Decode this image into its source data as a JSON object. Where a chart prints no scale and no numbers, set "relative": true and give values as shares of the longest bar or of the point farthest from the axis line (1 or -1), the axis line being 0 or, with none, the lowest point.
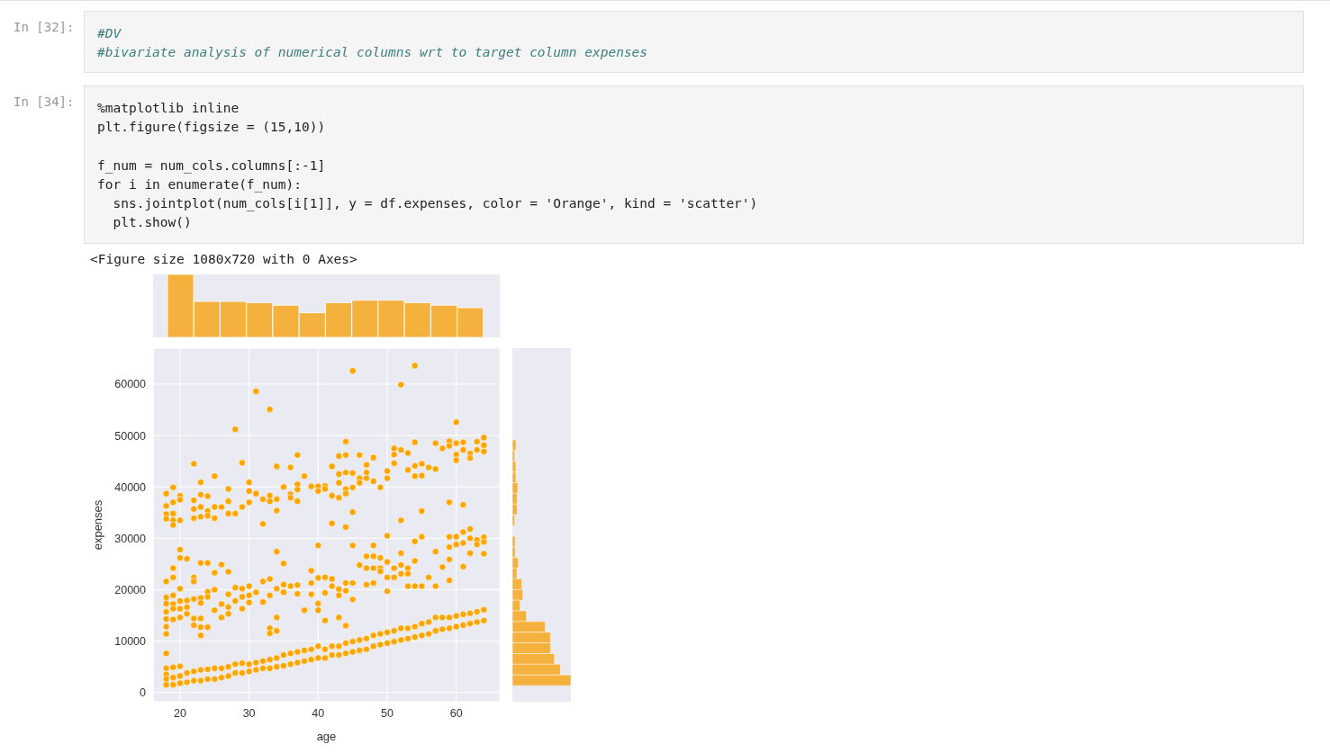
{
  "chart_data": [
    {
      "type": "bar",
      "relative": true,
      "color": "#f5b13d",
      "categories": [
        null,
        null,
        null,
        null,
        null,
        null,
        null,
        null,
        null,
        null,
        null,
        null
      ],
      "values": [
        1,
        0.57,
        0.57,
        0.55,
        0.51,
        0.39,
        0.55,
        0.59,
        0.59,
        0.55,
        0.51,
        0.47
      ],
      "annotations": [
        "In [32]:",
        "#DV",
        "#bivariate analysis of numerical columns wrt to target column expenses",
        "In [34]:",
        "%matplotlib inline",
        "plt.figure(figsize = (15,10))",
        "f_num = num_cols.columns[:-1]",
        "for i in enumerate(f_num):",
        "  sns.jointplot(num_cols[i[1]], y = df.expenses, color = 'Orange', kind = 'scatter')",
        "  plt.show()",
        "<Figure size 1080x720 with 0 Axes>"
      ]
    },
    {
      "type": "scatter",
      "color": "#ffa500",
      "marker": "circle",
      "xlabel": "age",
      "ylabel": "expenses",
      "xlim": [
        16.1,
        66.3
      ],
      "ylim": [
        -1800,
        67000
      ],
      "xticks": [
        20,
        30,
        40,
        50,
        60
      ],
      "yticks": [
        0,
        10000,
        20000,
        30000,
        40000,
        50000,
        60000
      ],
      "grid": true,
      "x": [
        18,
        18,
        18,
        18,
        18,
        18,
        18,
        18,
        18,
        18,
        18,
        18,
        18,
        18,
        18,
        18,
        19,
        19,
        19,
        19,
        19,
        19,
        19,
        19,
        19,
        19,
        19,
        19,
        19,
        19,
        20,
        20,
        20,
        20,
        20,
        20,
        20,
        20,
        20,
        20,
        20,
        20,
        21,
        21,
        21,
        21,
        21,
        21,
        22,
        22,
        22,
        22,
        22,
        22,
        22,
        22,
        22,
        22,
        22,
        23,
        23,
        23,
        23,
        23,
        23,
        23,
        23,
        23,
        23,
        23,
        23,
        24,
        24,
        24,
        24,
        24,
        24,
        24,
        24,
        24,
        25,
        25,
        25,
        25,
        25,
        25,
        25,
        25,
        26,
        26,
        26,
        26,
        26,
        26,
        27,
        27,
        27,
        27,
        27,
        27,
        27,
        27,
        27,
        28,
        28,
        28,
        28,
        28,
        28,
        29,
        29,
        29,
        29,
        29,
        29,
        29,
        30,
        30,
        30,
        30,
        30,
        30,
        30,
        30,
        31,
        31,
        31,
        31,
        31,
        32,
        32,
        32,
        32,
        32,
        32,
        33,
        33,
        33,
        33,
        33,
        33,
        33,
        33,
        33,
        34,
        34,
        34,
        34,
        34,
        34,
        34,
        34,
        34,
        35,
        35,
        35,
        35,
        35,
        35,
        36,
        36,
        36,
        36,
        36,
        36,
        37,
        37,
        37,
        37,
        37,
        37,
        37,
        37,
        38,
        38,
        38,
        38,
        39,
        39,
        39,
        39,
        39,
        39,
        40,
        40,
        40,
        40,
        40,
        40,
        40,
        40,
        41,
        41,
        41,
        41,
        41,
        41,
        41,
        42,
        42,
        42,
        42,
        42,
        42,
        42,
        43,
        43,
        43,
        43,
        43,
        43,
        43,
        43,
        43,
        44,
        44,
        44,
        44,
        44,
        44,
        44,
        44,
        44,
        44,
        44,
        45,
        45,
        45,
        45,
        45,
        45,
        45,
        45,
        45,
        46,
        46,
        46,
        46,
        46,
        46,
        47,
        47,
        47,
        47,
        47,
        47,
        47,
        47,
        48,
        48,
        48,
        48,
        48,
        48,
        48,
        48,
        49,
        49,
        49,
        49,
        49,
        49,
        50,
        50,
        50,
        50,
        50,
        50,
        50,
        50,
        51,
        51,
        51,
        51,
        51,
        51,
        51,
        52,
        52,
        52,
        52,
        52,
        52,
        52,
        52,
        53,
        53,
        53,
        53,
        53,
        53,
        53,
        54,
        54,
        54,
        54,
        54,
        54,
        54,
        54,
        54,
        55,
        55,
        55,
        55,
        55,
        55,
        55,
        56,
        56,
        56,
        56,
        57,
        57,
        57,
        57,
        57,
        57,
        58,
        58,
        58,
        58,
        59,
        59,
        59,
        59,
        59,
        59,
        59,
        59,
        59,
        60,
        60,
        60,
        60,
        60,
        60,
        60,
        60,
        61,
        61,
        61,
        61,
        61,
        61,
        61,
        61,
        62,
        62,
        62,
        62,
        62,
        62,
        62,
        63,
        63,
        63,
        63,
        63,
        63,
        64,
        64,
        64,
        64,
        64,
        64,
        64,
        64
      ],
      "values": [
        38700,
        36300,
        34700,
        33800,
        21600,
        18500,
        17300,
        15700,
        14300,
        12800,
        11400,
        7600,
        4700,
        3500,
        2600,
        1500,
        39900,
        37000,
        34800,
        33500,
        32600,
        24200,
        22400,
        18900,
        17200,
        16300,
        14200,
        4900,
        2900,
        1500,
        38300,
        37500,
        33500,
        27800,
        26200,
        20200,
        17800,
        16300,
        14600,
        5100,
        3200,
        1800,
        26000,
        17900,
        16600,
        15300,
        3800,
        2000,
        44500,
        37400,
        35700,
        33900,
        22400,
        21600,
        18200,
        14400,
        13100,
        4100,
        2300,
        40900,
        38500,
        36100,
        34200,
        25200,
        18400,
        17400,
        14400,
        12700,
        11100,
        4400,
        2300,
        38200,
        35300,
        34400,
        25200,
        19600,
        18600,
        12700,
        4500,
        2600,
        42100,
        36100,
        33900,
        23300,
        20000,
        16000,
        4700,
        2600,
        36100,
        24900,
        17200,
        14600,
        4700,
        2900,
        39600,
        37200,
        34800,
        23500,
        19100,
        16600,
        15300,
        5000,
        3200,
        51200,
        34800,
        20400,
        17800,
        5500,
        3800,
        44700,
        36100,
        20200,
        18600,
        16300,
        5700,
        3800,
        40900,
        39200,
        37000,
        20700,
        18900,
        17500,
        5500,
        4100,
        58600,
        38700,
        19500,
        5800,
        4400,
        37600,
        32800,
        21600,
        17600,
        6100,
        4700,
        55100,
        38300,
        37200,
        22100,
        18900,
        12500,
        11500,
        6400,
        4700,
        44000,
        37600,
        35400,
        27400,
        20200,
        14600,
        12000,
        6700,
        5000,
        40000,
        25100,
        21000,
        19500,
        7300,
        5200,
        43800,
        38600,
        37900,
        20700,
        7600,
        5500,
        46200,
        40500,
        39500,
        37200,
        20900,
        19200,
        7900,
        5800,
        42100,
        16000,
        8200,
        6100,
        40100,
        23700,
        21300,
        19100,
        8400,
        6400,
        40100,
        39200,
        28600,
        22300,
        17300,
        16000,
        9000,
        6700,
        40200,
        39600,
        22400,
        19400,
        14000,
        8400,
        6700,
        44000,
        38300,
        32900,
        22100,
        20700,
        9000,
        7300,
        46000,
        42500,
        40800,
        37900,
        20100,
        18900,
        14600,
        9000,
        7300,
        48800,
        46200,
        42800,
        39600,
        38700,
        32200,
        21300,
        19800,
        13000,
        9600,
        7600,
        62600,
        42700,
        39900,
        35100,
        28600,
        21300,
        18100,
        9900,
        7900,
        46200,
        41700,
        40800,
        24800,
        10200,
        8200,
        44300,
        42800,
        41700,
        26500,
        24200,
        21000,
        10500,
        8400,
        45700,
        41100,
        28600,
        26500,
        24200,
        21300,
        11100,
        9000,
        39900,
        26200,
        24200,
        23600,
        11400,
        9300,
        43100,
        41700,
        30500,
        25400,
        22400,
        19700,
        11700,
        9600,
        47500,
        46300,
        44600,
        24200,
        22400,
        12000,
        9900,
        59900,
        47200,
        33500,
        27100,
        24800,
        23100,
        12500,
        10200,
        46600,
        43300,
        24200,
        23100,
        20700,
        12500,
        10500,
        63600,
        48700,
        44100,
        42100,
        29400,
        25600,
        20700,
        12800,
        10800,
        44500,
        42200,
        35300,
        30300,
        20700,
        13400,
        11100,
        43800,
        22400,
        13700,
        11400,
        48500,
        43500,
        27400,
        20700,
        14600,
        12000,
        47500,
        24400,
        14600,
        12300,
        48900,
        48000,
        37000,
        30300,
        28300,
        25900,
        21800,
        14600,
        12500,
        52600,
        48500,
        46300,
        45200,
        30300,
        28800,
        14900,
        12800,
        48700,
        47200,
        36500,
        31200,
        29100,
        24500,
        15200,
        13100,
        46500,
        45600,
        31800,
        30000,
        27100,
        15400,
        13400,
        48800,
        47200,
        29700,
        28800,
        15700,
        13700,
        49600,
        48100,
        46900,
        30200,
        29300,
        27000,
        16100,
        14000
      ]
    },
    {
      "type": "bar",
      "orientation": "horizontal",
      "relative": true,
      "color": "#f5b13d",
      "categories": [
        null,
        null,
        null,
        null,
        null,
        null,
        null,
        null
      ],
      "values": [
        0.67,
        0.44,
        0.67,
        0.67,
        1,
        0.89,
        0.89,
        0.44
      ]
    },
    {
      "type": "bar",
      "orientation": "horizontal",
      "relative": true,
      "color": "#f5b13d",
      "categories": [
        null,
        null,
        null,
        null,
        null,
        null,
        null,
        null,
        null,
        null,
        null,
        null,
        null,
        null
      ],
      "values": [
        0.05,
        0.05,
        0.1,
        0.08,
        0.16,
        0.18,
        0.13,
        0.24,
        0.56,
        0.65,
        0.65,
        0.72,
        0.82,
        1
      ]
    }
  ]
}
